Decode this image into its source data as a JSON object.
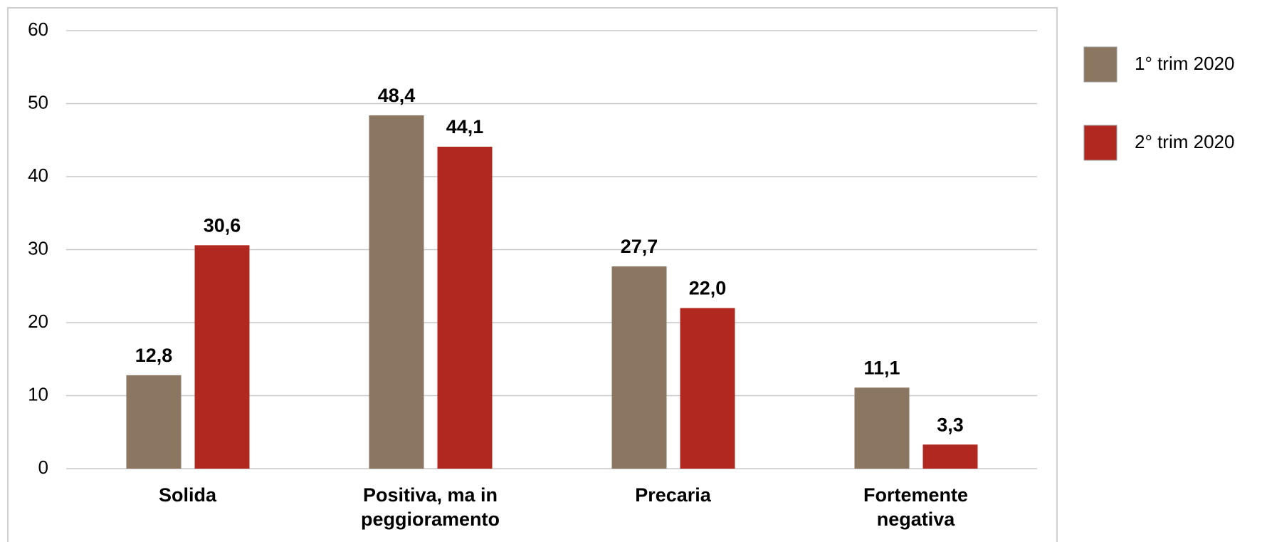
{
  "chart_data": {
    "type": "bar",
    "categories": [
      "Solida",
      "Positiva, ma in peggioramento",
      "Precaria",
      "Fortemente negativa"
    ],
    "series": [
      {
        "name": "1° trim 2020",
        "color": "#8b7661",
        "values": [
          12.8,
          48.4,
          27.7,
          11.1
        ],
        "value_labels": [
          "12,8",
          "48,4",
          "27,7",
          "11,1"
        ]
      },
      {
        "name": "2° trim 2020",
        "color": "#b0281f",
        "values": [
          30.6,
          44.1,
          22.0,
          3.3
        ],
        "value_labels": [
          "30,6",
          "44,1",
          "22,0",
          "3,3"
        ]
      }
    ],
    "ylim": [
      0,
      60
    ],
    "yticks": [
      0,
      10,
      20,
      30,
      40,
      50,
      60
    ],
    "grid": true,
    "legend": "right"
  }
}
